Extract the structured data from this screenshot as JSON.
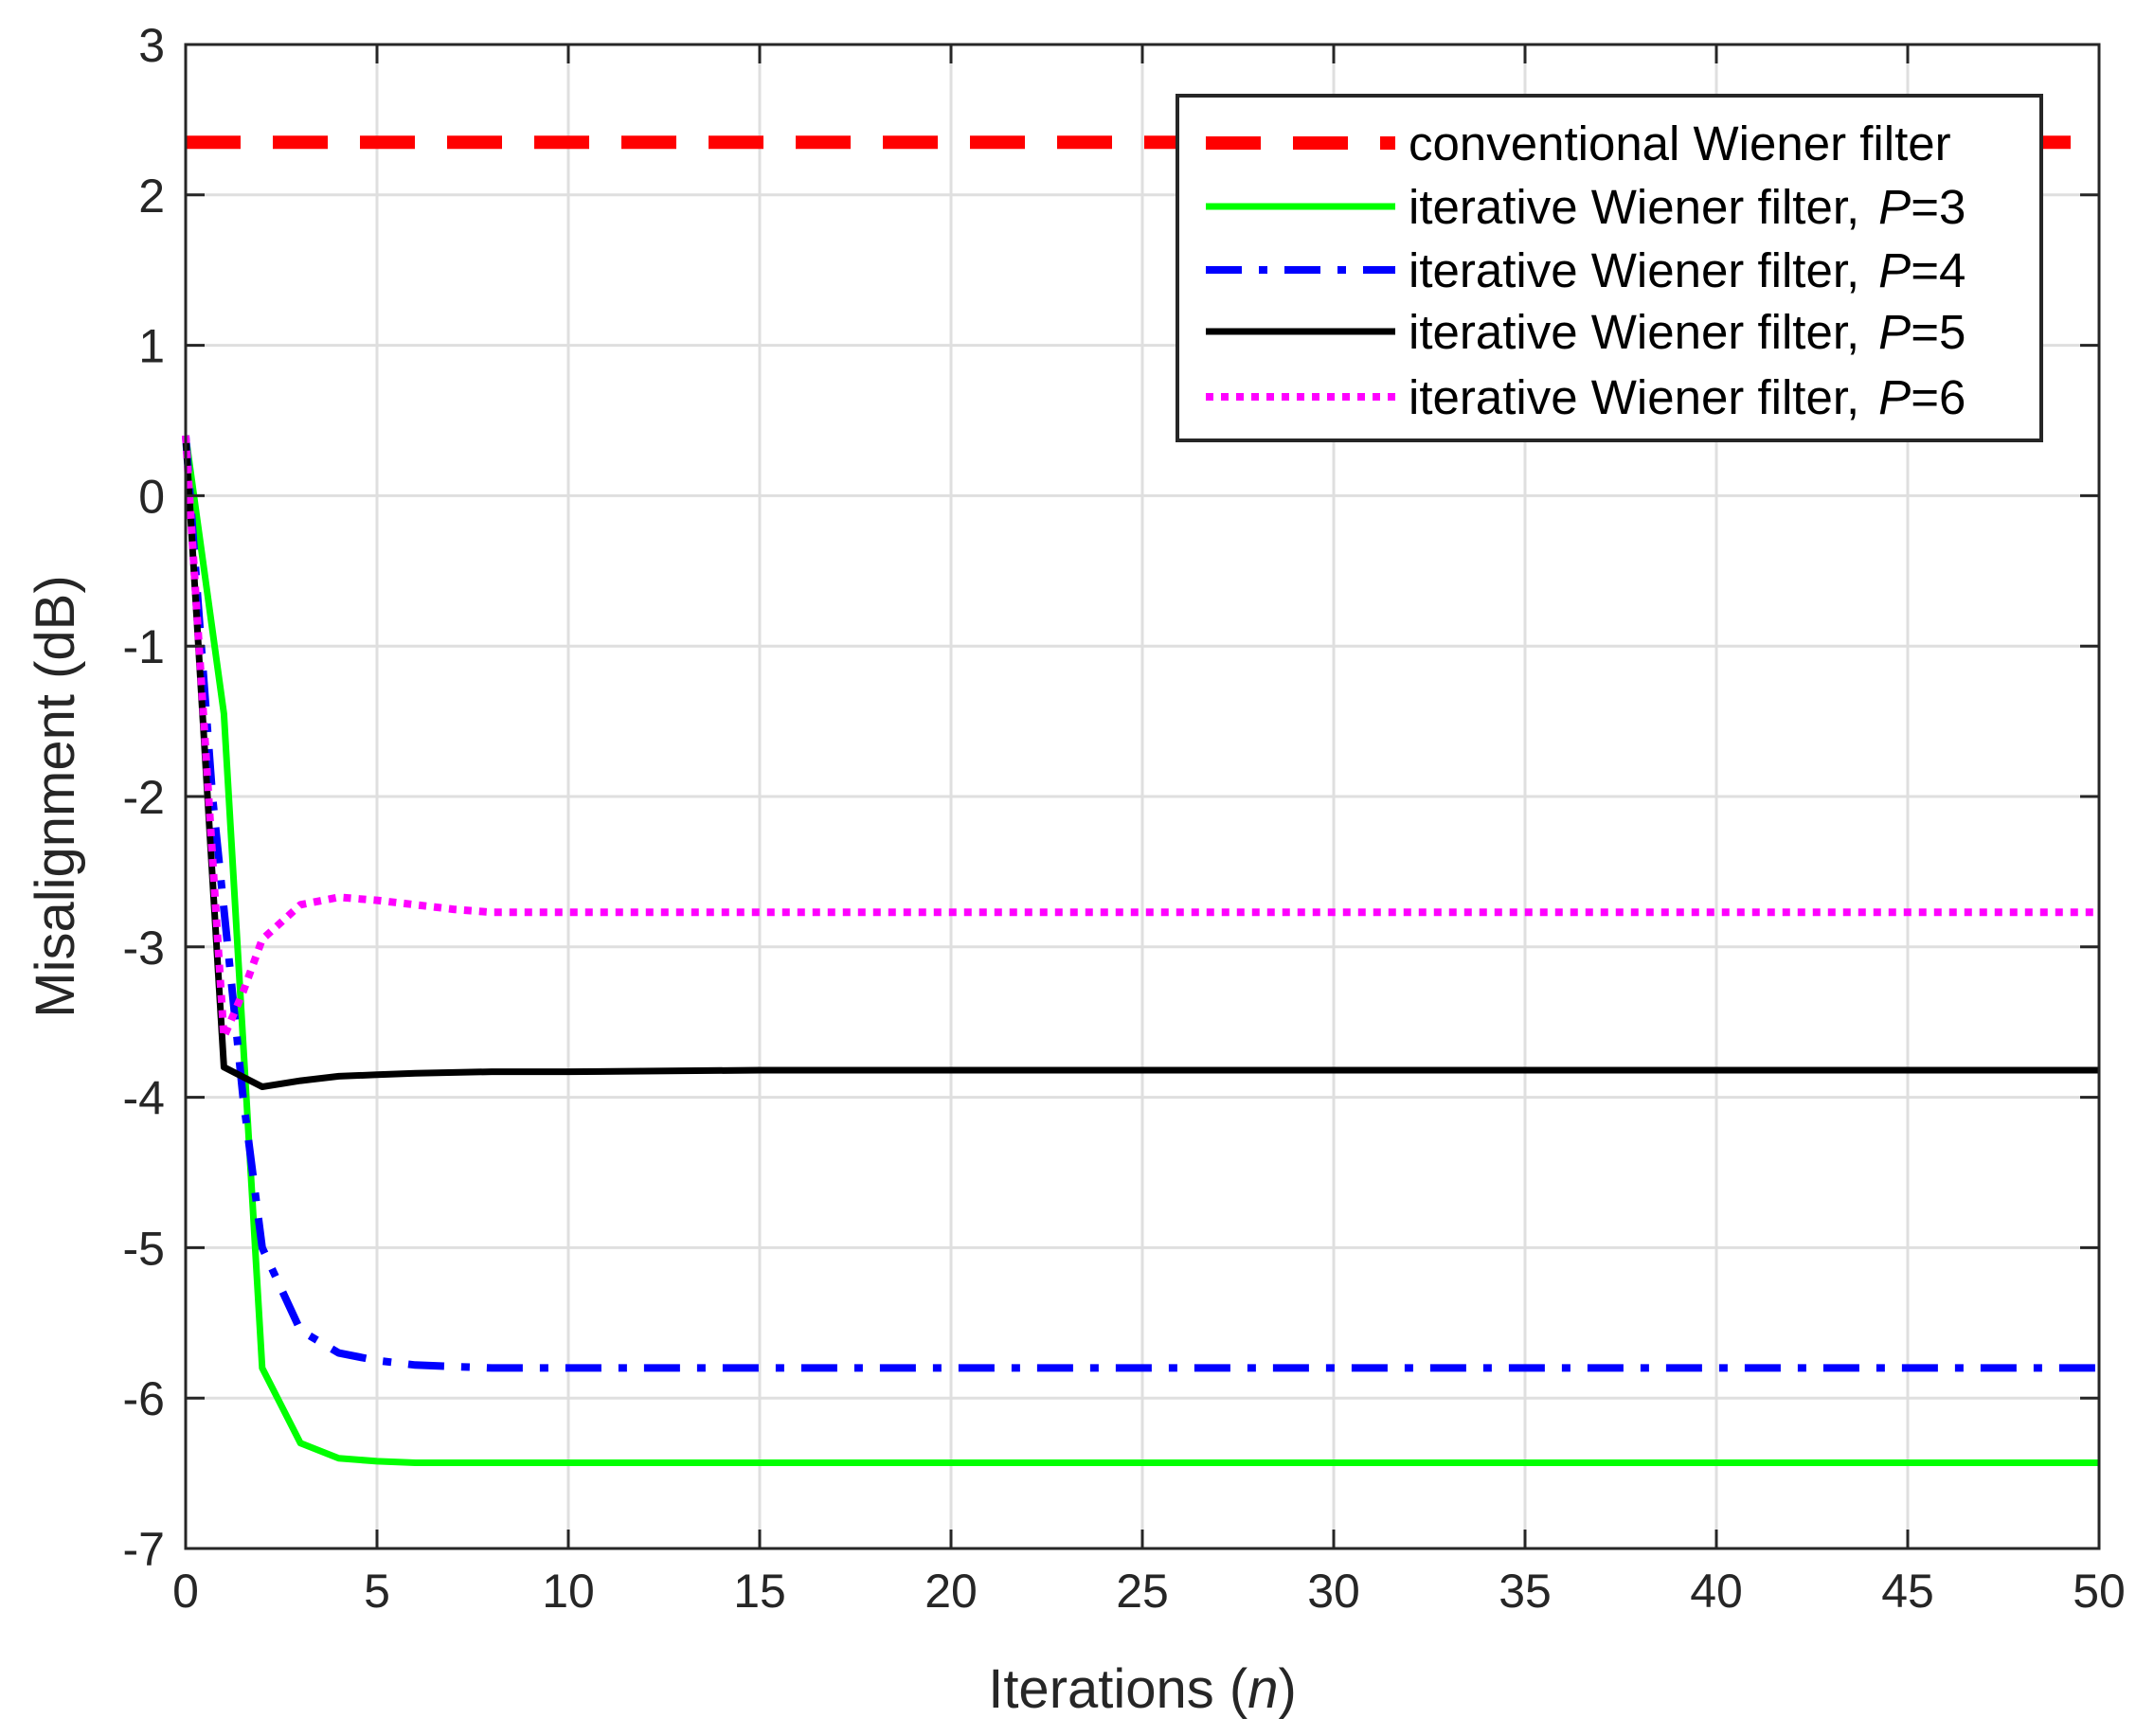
{
  "chart_data": {
    "type": "line",
    "title": "",
    "xlabel": {
      "prefix": "Iterations (",
      "var": "n",
      "suffix": ")"
    },
    "ylabel": "Misalignment (dB)",
    "xlim": [
      0,
      50
    ],
    "ylim": [
      -7,
      3
    ],
    "xticks": [
      0,
      5,
      10,
      15,
      20,
      25,
      30,
      35,
      40,
      45,
      50
    ],
    "yticks": [
      -7,
      -6,
      -5,
      -4,
      -3,
      -2,
      -1,
      0,
      1,
      2,
      3
    ],
    "grid": true,
    "legend_position": "top-right",
    "series": [
      {
        "name": "conventional Wiener filter",
        "legend_main": "conventional Wiener filter",
        "legend_var": "",
        "legend_suffix": "",
        "color": "#ff0000",
        "style": "dashed",
        "x": [
          0,
          50
        ],
        "y": [
          2.35,
          2.35
        ]
      },
      {
        "name": "iterative Wiener filter, P=3",
        "legend_main": "iterative Wiener filter,",
        "legend_var": "P",
        "legend_suffix": "=3",
        "color": "#00ff00",
        "style": "solid",
        "x": [
          0,
          1,
          2,
          3,
          4,
          5,
          6,
          7,
          8,
          10,
          15,
          20,
          30,
          40,
          50
        ],
        "y": [
          0.4,
          -1.45,
          -5.8,
          -6.3,
          -6.4,
          -6.42,
          -6.43,
          -6.43,
          -6.43,
          -6.43,
          -6.43,
          -6.43,
          -6.43,
          -6.43,
          -6.43
        ]
      },
      {
        "name": "iterative Wiener filter, P=4",
        "legend_main": "iterative Wiener filter,",
        "legend_var": "P",
        "legend_suffix": "=4",
        "color": "#0000ff",
        "style": "dashdot",
        "x": [
          0,
          0.7,
          1.5,
          2,
          3,
          4,
          5,
          6,
          7,
          8,
          10,
          15,
          20,
          30,
          40,
          50
        ],
        "y": [
          0.4,
          -2.0,
          -4.0,
          -5.0,
          -5.55,
          -5.7,
          -5.75,
          -5.78,
          -5.79,
          -5.8,
          -5.8,
          -5.8,
          -5.8,
          -5.8,
          -5.8,
          -5.8
        ]
      },
      {
        "name": "iterative Wiener filter, P=5",
        "legend_main": "iterative Wiener filter,",
        "legend_var": "P",
        "legend_suffix": "=5",
        "color": "#000000",
        "style": "solid",
        "x": [
          0,
          1,
          2,
          3,
          4,
          5,
          6,
          8,
          10,
          15,
          20,
          30,
          40,
          50
        ],
        "y": [
          0.4,
          -3.8,
          -3.93,
          -3.89,
          -3.86,
          -3.85,
          -3.84,
          -3.83,
          -3.83,
          -3.82,
          -3.82,
          -3.82,
          -3.82,
          -3.82
        ]
      },
      {
        "name": "iterative Wiener filter, P=6",
        "legend_main": "iterative Wiener filter,",
        "legend_var": "P",
        "legend_suffix": "=6",
        "color": "#ff00ff",
        "style": "dotted",
        "x": [
          0,
          1,
          1.5,
          2,
          3,
          4,
          5,
          6,
          7,
          8,
          10,
          15,
          20,
          30,
          40,
          50
        ],
        "y": [
          0.4,
          -3.6,
          -3.3,
          -2.95,
          -2.72,
          -2.67,
          -2.69,
          -2.72,
          -2.75,
          -2.77,
          -2.77,
          -2.77,
          -2.77,
          -2.77,
          -2.77,
          -2.77
        ]
      }
    ]
  }
}
